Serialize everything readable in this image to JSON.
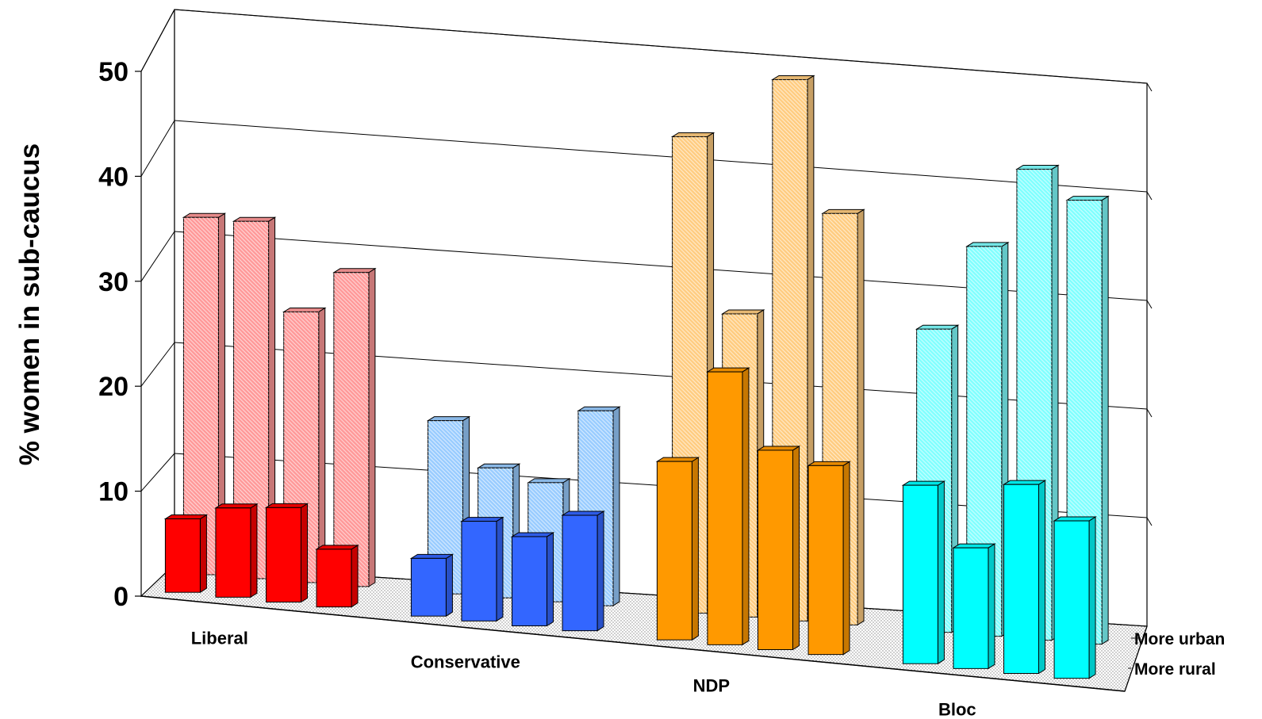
{
  "chart_data": {
    "type": "bar",
    "style": "3d-clustered",
    "ylabel": "% women in sub-caucus",
    "ylim": [
      0,
      50
    ],
    "yticks": [
      0,
      10,
      20,
      30,
      40,
      50
    ],
    "categories": [
      "Liberal",
      "Conservative",
      "NDP",
      "Bloc"
    ],
    "depth_labels": [
      "More urban",
      "More rural"
    ],
    "grid": true,
    "series": [
      {
        "name": "More rural",
        "pattern": "solid",
        "colors": [
          "#ff0000",
          "#3366ff",
          "#ff9900",
          "#00ffff"
        ],
        "values": [
          [
            7,
            8.5,
            9,
            5.5
          ],
          [
            5.5,
            9.5,
            8.5,
            11
          ],
          [
            17,
            26,
            19,
            18
          ],
          [
            17,
            11.5,
            18,
            15
          ]
        ]
      },
      {
        "name": "More urban",
        "pattern": "hatched",
        "colors": [
          "#ff9999",
          "#99ccff",
          "#ffcc80",
          "#80ffff"
        ],
        "values": [
          [
            33,
            33,
            25,
            29
          ],
          [
            16,
            12,
            11,
            18
          ],
          [
            44,
            28,
            50,
            38
          ],
          [
            28,
            36,
            43.5,
            41
          ]
        ]
      }
    ]
  }
}
